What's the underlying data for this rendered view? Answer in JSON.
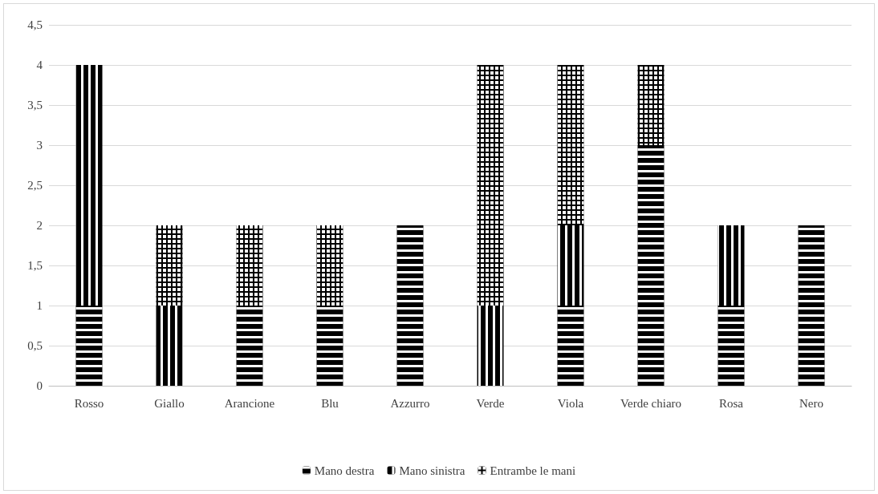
{
  "chart_data": {
    "type": "bar",
    "stacked": true,
    "categories": [
      "Rosso",
      "Giallo",
      "Arancione",
      "Blu",
      "Azzurro",
      "Verde",
      "Viola",
      "Verde chiaro",
      "Rosa",
      "Nero"
    ],
    "series": [
      {
        "name": "Mano destra",
        "color": "#000000",
        "values": [
          1,
          0,
          1,
          1,
          2,
          0,
          1,
          3,
          1,
          2
        ]
      },
      {
        "name": "Mano sinistra",
        "color": "#000000",
        "values": [
          3,
          1,
          0,
          0,
          0,
          1,
          1,
          0,
          1,
          0
        ]
      },
      {
        "name": "Entrambe le mani",
        "color": "#000000",
        "values": [
          0,
          1,
          1,
          1,
          0,
          3,
          2,
          1,
          0,
          0
        ]
      }
    ],
    "ylim": [
      0,
      4.5
    ],
    "yticks": [
      0,
      {
        "value": 0.5,
        "label": "0,5"
      },
      1,
      {
        "value": 1.5,
        "label": "1,5"
      },
      2,
      {
        "value": 2.5,
        "label": "2,5"
      },
      3,
      {
        "value": 3.5,
        "label": "3,5"
      },
      4,
      {
        "value": 4.5,
        "label": "4,5"
      }
    ],
    "grid": "y",
    "legend": "bottom"
  }
}
